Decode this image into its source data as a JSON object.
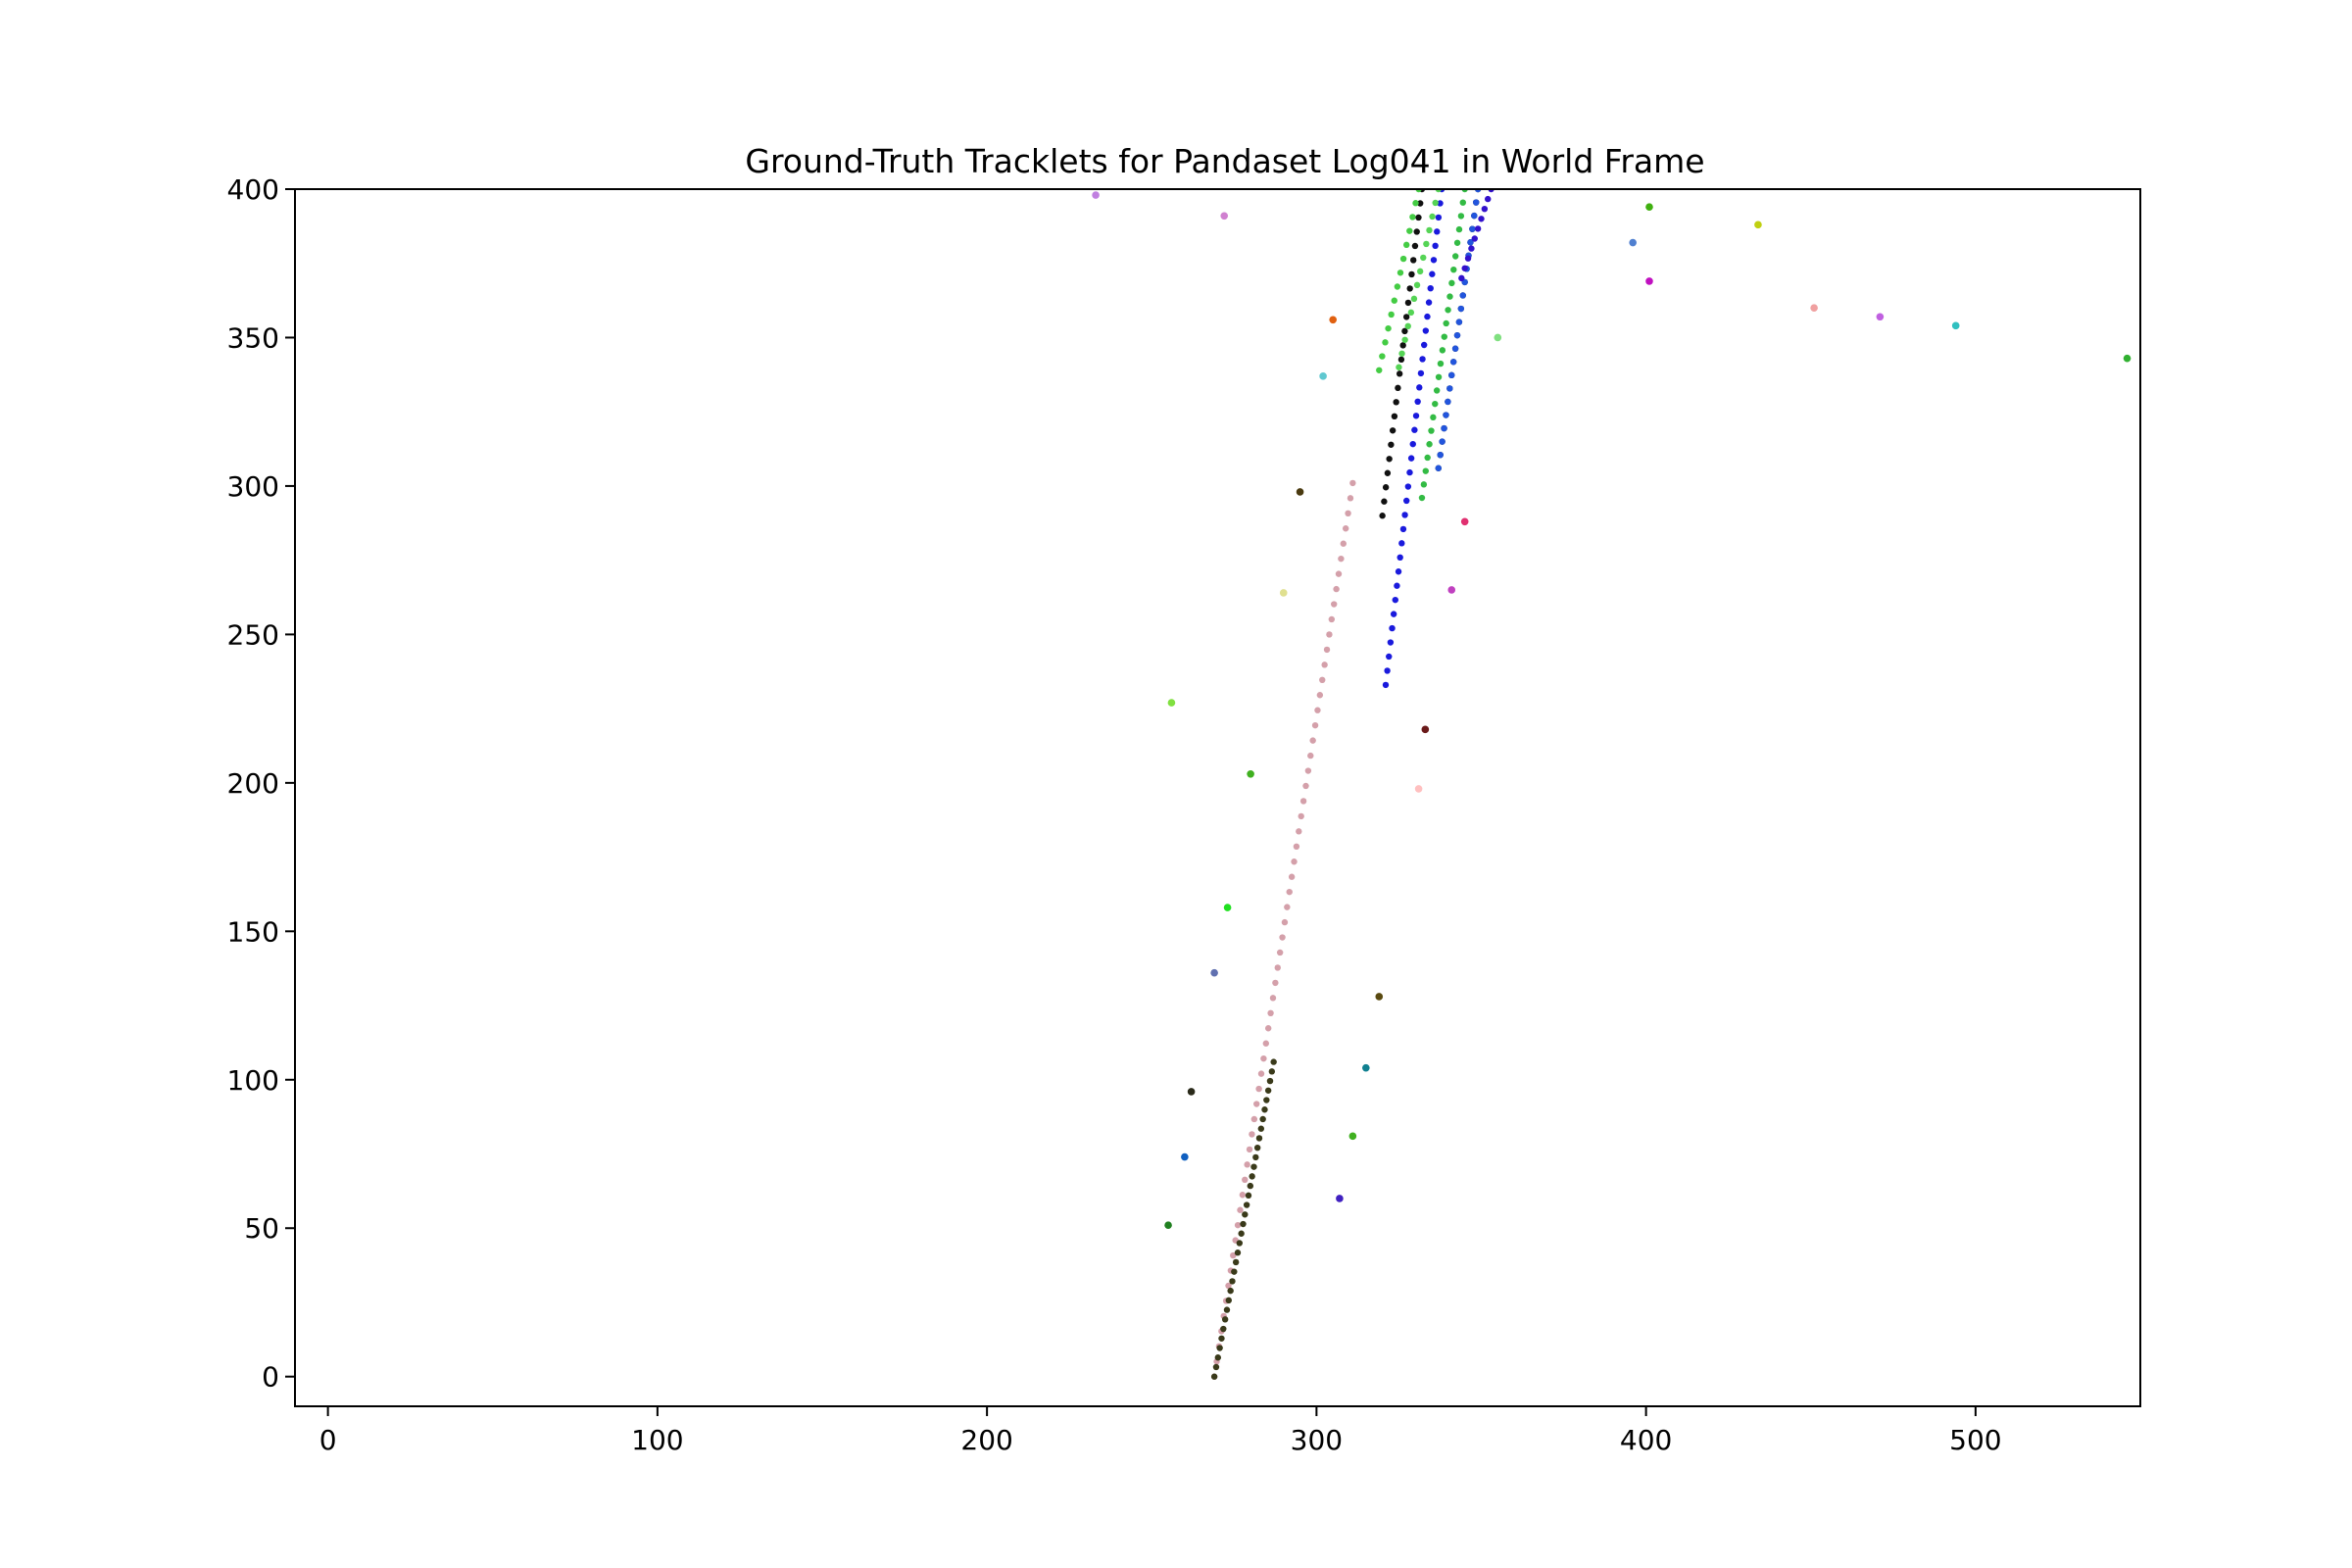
{
  "chart_data": {
    "type": "scatter",
    "title": "Ground-Truth Tracklets for Pandaset Log041 in World Frame",
    "xlabel": "",
    "ylabel": "",
    "xlim": [
      -10,
      550
    ],
    "ylim": [
      -10,
      400
    ],
    "xticks": [
      0,
      100,
      200,
      300,
      400,
      500
    ],
    "yticks": [
      0,
      50,
      100,
      150,
      200,
      250,
      300,
      350,
      400
    ],
    "grid": false,
    "legend": "none",
    "tracks": [
      {
        "color": "#d4a0aa",
        "start": [
          269,
          0
        ],
        "end": [
          311,
          301
        ],
        "count": 60
      },
      {
        "color": "#3a3a1a",
        "start": [
          269,
          0
        ],
        "end": [
          287,
          106
        ],
        "count": 34
      },
      {
        "color": "#1a1add",
        "start": [
          321,
          233
        ],
        "end": [
          338,
          400
        ],
        "count": 36
      },
      {
        "color": "#111111",
        "start": [
          320,
          290
        ],
        "end": [
          332,
          400
        ],
        "count": 24
      },
      {
        "color": "#44cc44",
        "start": [
          319,
          339
        ],
        "end": [
          331,
          400
        ],
        "count": 14
      },
      {
        "color": "#55d455",
        "start": [
          325,
          340
        ],
        "end": [
          337,
          400
        ],
        "count": 14
      },
      {
        "color": "#33bb44",
        "start": [
          332,
          296
        ],
        "end": [
          345,
          400
        ],
        "count": 24
      },
      {
        "color": "#111111",
        "start": [
          337,
          306
        ],
        "end": [
          349,
          400
        ],
        "count": 22
      },
      {
        "color": "#2255dd",
        "start": [
          337,
          306
        ],
        "end": [
          349,
          400
        ],
        "count": 22
      },
      {
        "color": "#3311cc",
        "start": [
          344,
          370
        ],
        "end": [
          353,
          400
        ],
        "count": 10
      }
    ],
    "points": [
      {
        "x": 233,
        "y": 398,
        "color": "#c080e0"
      },
      {
        "x": 272,
        "y": 391,
        "color": "#d080d0"
      },
      {
        "x": 305,
        "y": 356,
        "color": "#e06010"
      },
      {
        "x": 302,
        "y": 337,
        "color": "#60c8d0"
      },
      {
        "x": 295,
        "y": 298,
        "color": "#4a3a10"
      },
      {
        "x": 290,
        "y": 264,
        "color": "#e0e090"
      },
      {
        "x": 256,
        "y": 227,
        "color": "#80e040"
      },
      {
        "x": 280,
        "y": 203,
        "color": "#40b020"
      },
      {
        "x": 273,
        "y": 158,
        "color": "#20e020"
      },
      {
        "x": 269,
        "y": 136,
        "color": "#6070b0"
      },
      {
        "x": 262,
        "y": 96,
        "color": "#2a2a1a"
      },
      {
        "x": 260,
        "y": 74,
        "color": "#1060c0"
      },
      {
        "x": 255,
        "y": 51,
        "color": "#208020"
      },
      {
        "x": 319,
        "y": 128,
        "color": "#5a4a10"
      },
      {
        "x": 315,
        "y": 104,
        "color": "#108090"
      },
      {
        "x": 311,
        "y": 81,
        "color": "#40b020"
      },
      {
        "x": 307,
        "y": 60,
        "color": "#4020c0"
      },
      {
        "x": 333,
        "y": 218,
        "color": "#6a1a1a"
      },
      {
        "x": 331,
        "y": 198,
        "color": "#ffc0c0"
      },
      {
        "x": 341,
        "y": 265,
        "color": "#c040c0"
      },
      {
        "x": 345,
        "y": 288,
        "color": "#e03070"
      },
      {
        "x": 355,
        "y": 350,
        "color": "#80e080"
      },
      {
        "x": 401,
        "y": 394,
        "color": "#40b010"
      },
      {
        "x": 396,
        "y": 382,
        "color": "#5080d0"
      },
      {
        "x": 401,
        "y": 369,
        "color": "#c010c0"
      },
      {
        "x": 434,
        "y": 388,
        "color": "#c0d010"
      },
      {
        "x": 451,
        "y": 360,
        "color": "#f0a0a0"
      },
      {
        "x": 471,
        "y": 357,
        "color": "#c060e0"
      },
      {
        "x": 494,
        "y": 354,
        "color": "#30c0c0"
      },
      {
        "x": 546,
        "y": 343,
        "color": "#30b030"
      }
    ]
  }
}
